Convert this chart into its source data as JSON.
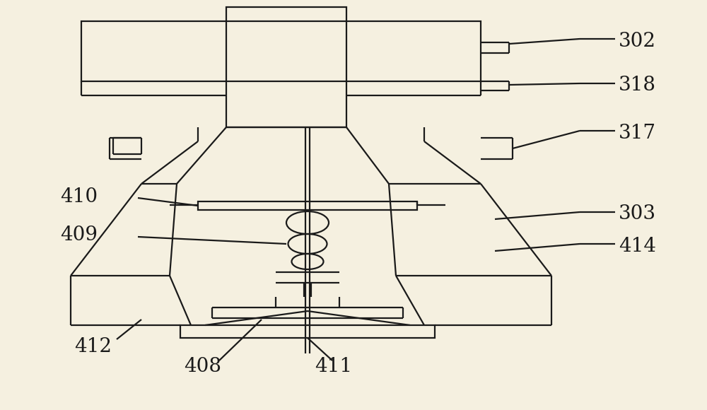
{
  "bg_color": "#f5f0e0",
  "line_color": "#1a1a1a",
  "lw": 1.6,
  "label_fontsize": 20
}
